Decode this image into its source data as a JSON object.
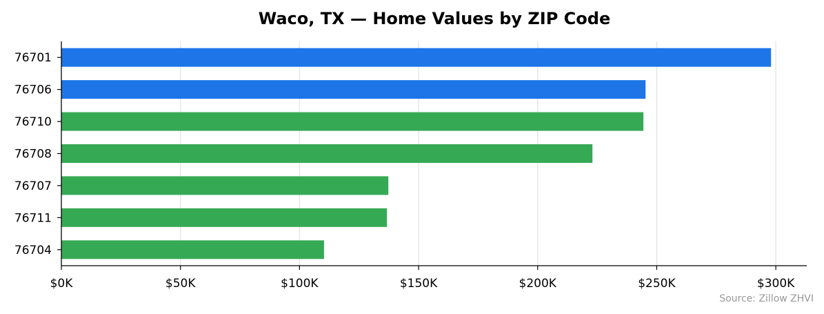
{
  "chart_data": {
    "type": "bar",
    "orientation": "horizontal",
    "title": "Waco, TX — Home Values by ZIP Code",
    "xlabel": "",
    "ylabel": "",
    "categories": [
      "76701",
      "76706",
      "76710",
      "76708",
      "76707",
      "76711",
      "76704"
    ],
    "values": [
      298000,
      245300,
      244400,
      223000,
      137300,
      136700,
      110300
    ],
    "bar_colors": [
      "#1a73e8",
      "#1a73e8",
      "#34a853",
      "#34a853",
      "#34a853",
      "#34a853",
      "#34a853"
    ],
    "xlim": [
      0,
      313000
    ],
    "xticks": [
      0,
      50000,
      100000,
      150000,
      200000,
      250000,
      300000
    ],
    "xtick_labels": [
      "$0K",
      "$50K",
      "$100K",
      "$150K",
      "$200K",
      "$250K",
      "$300K"
    ],
    "grid": "vertical",
    "source": "Source: Zillow ZHVI"
  }
}
